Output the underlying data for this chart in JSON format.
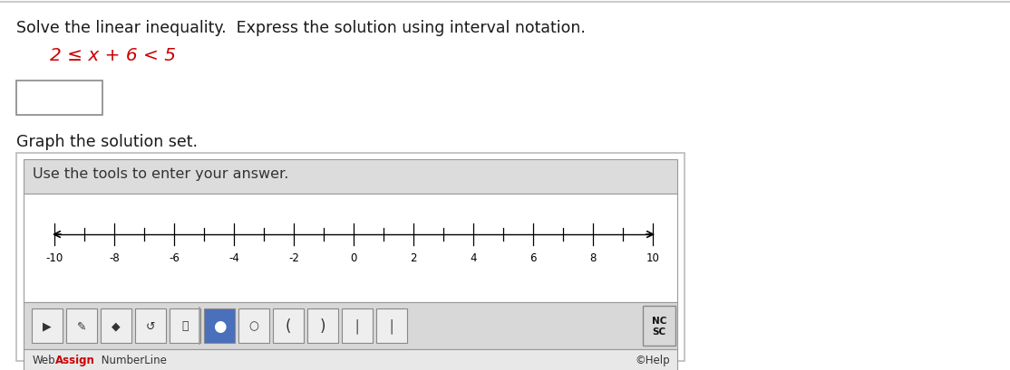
{
  "page_bg": "#ffffff",
  "instruction_text": "Solve the linear inequality.  Express the solution using interval notation.",
  "instruction_color": "#1a1a1a",
  "instruction_fontsize": 12.5,
  "inequality_text": "2 ≤ x + 6 < 5",
  "inequality_color": "#cc0000",
  "inequality_fontsize": 14.5,
  "graph_label": "Graph the solution set.",
  "graph_label_fontsize": 12.5,
  "graph_label_color": "#1a1a1a",
  "tools_label": "Use the tools to enter your answer.",
  "tools_label_fontsize": 11.5,
  "numberline_ticks": [
    -10,
    -8,
    -6,
    -4,
    -2,
    0,
    2,
    4,
    6,
    8,
    10
  ],
  "tick_label_fontsize": 8.5,
  "outer_box_edge": "#bbbbbb",
  "header_bg": "#dcdcdc",
  "header_border": "#999999",
  "nl_area_bg": "#ffffff",
  "toolbar_bg": "#d8d8d8",
  "toolbar_border": "#999999",
  "bottom_bar_bg": "#e8e8e8",
  "icon_bg": "#eeeeee",
  "icon_border": "#888888",
  "icon_blue_bg": "#4a6fbb",
  "webassign_color_web": "#333333",
  "webassign_color_assign": "#cc0000",
  "help_text": "©Help",
  "nc_bg": "#d8d8d8",
  "top_border_color": "#cccccc"
}
